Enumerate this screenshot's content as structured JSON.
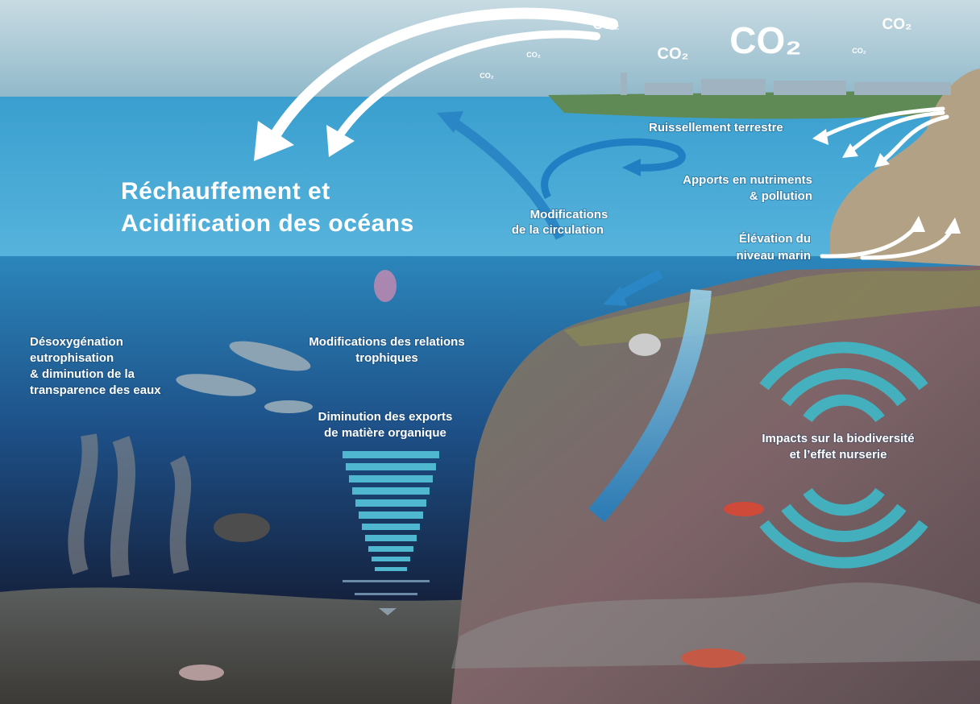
{
  "co2_labels": [
    "CO₂",
    "CO₂",
    "CO₂",
    "CO₂",
    "CO₂",
    "CO₂",
    "CO₂"
  ],
  "title": {
    "lines": [
      "Réchauffement et",
      "Acidification des océans"
    ]
  },
  "labels": [
    {
      "lines": [
        "Ruissellement terrestre"
      ]
    },
    {
      "lines": [
        "Apports en nutriments",
        "& pollution"
      ]
    },
    {
      "lines": [
        "Modifications",
        "de la circulation"
      ]
    },
    {
      "lines": [
        "Élévation du",
        "niveau marin"
      ]
    },
    {
      "lines": [
        "Désoxygénation",
        "eutrophisation",
        "& diminution de la",
        "transparence des eaux"
      ]
    },
    {
      "lines": [
        "Modifications des relations",
        "trophiques"
      ]
    },
    {
      "lines": [
        "Diminution des exports",
        "de matière organique"
      ]
    },
    {
      "lines": [
        "Impacts sur la biodiversité",
        "et l’effet nurserie"
      ]
    }
  ]
}
